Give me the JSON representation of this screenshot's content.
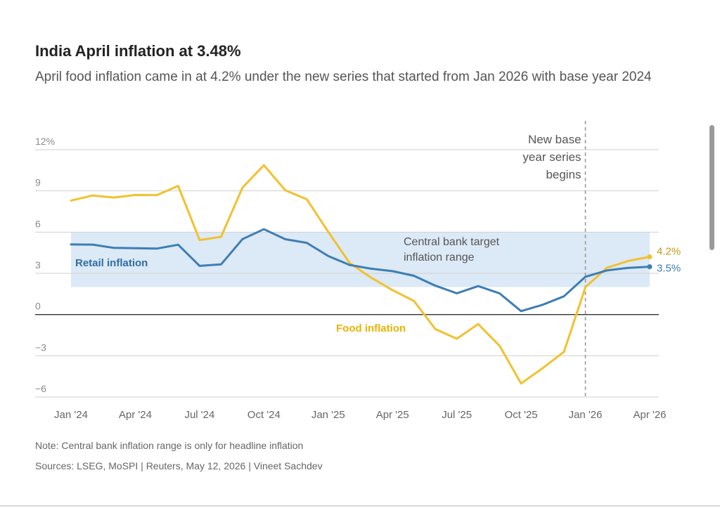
{
  "header": {
    "title": "India April inflation at 3.48%",
    "subtitle": "April food inflation came in at 4.2% under the new series that started from Jan 2026 with base year 2024"
  },
  "footer": {
    "note": "Note: Central bank inflation range is only for headline inflation",
    "sources": "Sources: LSEG, MoSPI | Reuters, May 12, 2026 | Vineet Sachdev"
  },
  "colors": {
    "food": "#f2c12e",
    "retail": "#3d7eb3",
    "band": "#dce9f6",
    "grid": "#cfcfcf",
    "zero": "#333333",
    "retail_label": "#2e6da4",
    "food_label": "#e8b400",
    "food_end_label": "#c89b14",
    "retail_end_label": "#3d7eb3"
  },
  "chart_data": {
    "type": "line",
    "x": [
      "Jan 2024",
      "Feb 2024",
      "Mar 2024",
      "Apr 2024",
      "May 2024",
      "Jun 2024",
      "Jul 2024",
      "Aug 2024",
      "Sep 2024",
      "Oct 2024",
      "Nov 2024",
      "Dec 2024",
      "Jan 2025",
      "Feb 2025",
      "Mar 2025",
      "Apr 2025",
      "May 2025",
      "Jun 2025",
      "Jul 2025",
      "Aug 2025",
      "Sep 2025",
      "Oct 2025",
      "Nov 2025",
      "Dec 2025",
      "Jan 2026",
      "Feb 2026",
      "Mar 2026",
      "Apr 2026"
    ],
    "x_tick_labels": [
      {
        "index": 0,
        "label": "Jan '24"
      },
      {
        "index": 3,
        "label": "Apr '24"
      },
      {
        "index": 6,
        "label": "Jul '24"
      },
      {
        "index": 9,
        "label": "Oct '24"
      },
      {
        "index": 12,
        "label": "Jan '25"
      },
      {
        "index": 15,
        "label": "Apr '25"
      },
      {
        "index": 18,
        "label": "Jul '25"
      },
      {
        "index": 21,
        "label": "Oct '25"
      },
      {
        "index": 24,
        "label": "Jan '26"
      },
      {
        "index": 27,
        "label": "Apr '26"
      }
    ],
    "y_ticks": [
      {
        "value": 12,
        "label": "12%"
      },
      {
        "value": 9,
        "label": "9"
      },
      {
        "value": 6,
        "label": "6"
      },
      {
        "value": 3,
        "label": "3"
      },
      {
        "value": 0,
        "label": "0"
      },
      {
        "value": -3,
        "label": "−3"
      },
      {
        "value": -6,
        "label": "−6"
      }
    ],
    "ylim": [
      -6,
      12
    ],
    "target_band": {
      "low": 2,
      "high": 6,
      "label": "Central bank target inflation range"
    },
    "vline": {
      "index": 24,
      "label_lines": [
        "New base",
        "year series",
        "begins"
      ]
    },
    "series": [
      {
        "name": "Food inflation",
        "color": "#f2c12e",
        "end_label": "4.2%",
        "values": [
          8.3,
          8.66,
          8.52,
          8.7,
          8.69,
          9.36,
          5.42,
          5.66,
          9.24,
          10.87,
          9.04,
          8.39,
          6.02,
          3.75,
          2.69,
          1.78,
          0.99,
          -1.06,
          -1.76,
          -0.69,
          -2.28,
          -5.02,
          -3.91,
          -2.71,
          2.0,
          3.4,
          3.9,
          4.2
        ]
      },
      {
        "name": "Retail inflation",
        "color": "#3d7eb3",
        "end_label": "3.5%",
        "values": [
          5.1,
          5.09,
          4.85,
          4.83,
          4.8,
          5.08,
          3.54,
          3.65,
          5.49,
          6.21,
          5.48,
          5.22,
          4.26,
          3.61,
          3.34,
          3.16,
          2.82,
          2.1,
          1.55,
          2.07,
          1.54,
          0.25,
          0.71,
          1.33,
          2.75,
          3.21,
          3.4,
          3.48
        ]
      }
    ],
    "series_labels": {
      "retail": "Retail inflation",
      "food": "Food inflation"
    }
  }
}
